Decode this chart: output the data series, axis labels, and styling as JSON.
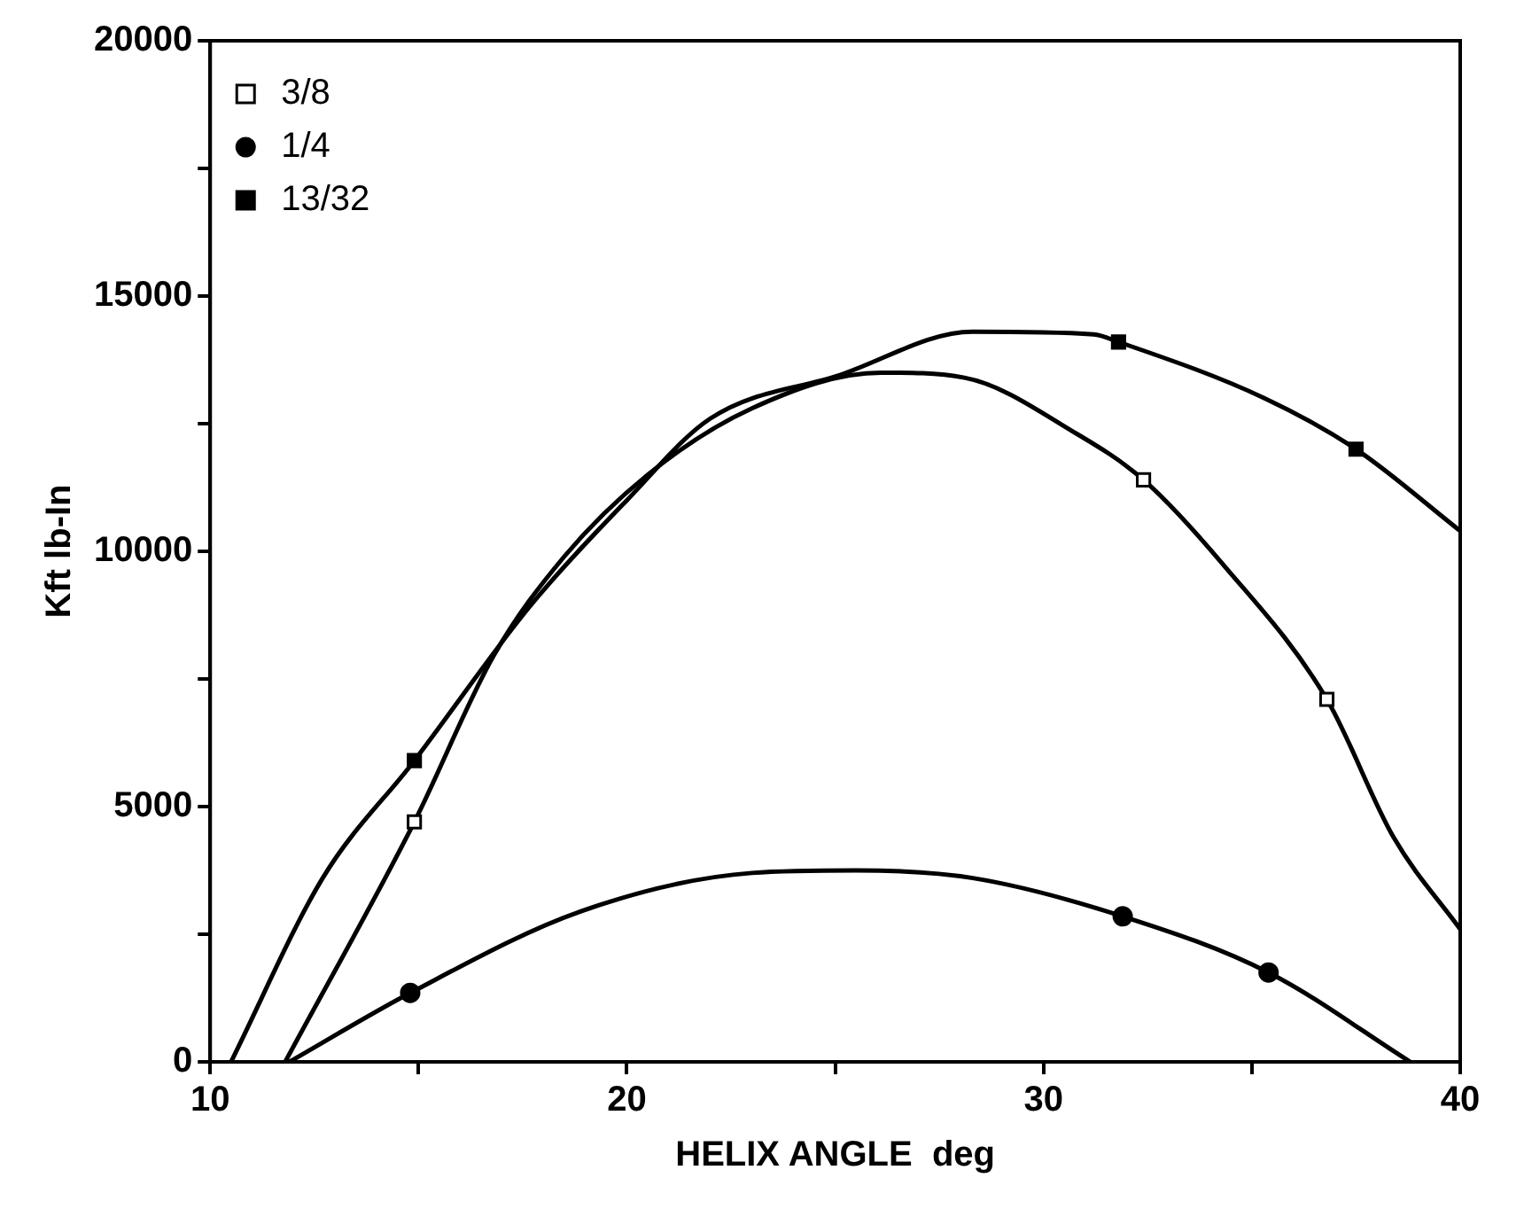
{
  "chart_data": {
    "type": "line",
    "xlabel": "HELIX ANGLE  deg",
    "ylabel": "Kft lb-In",
    "xlim": [
      10,
      40
    ],
    "xticks": [
      10,
      {
        "value": 15,
        "label": null
      },
      20,
      {
        "value": 25,
        "label": null
      },
      30,
      {
        "value": 35,
        "label": null
      },
      40
    ],
    "ylim": [
      0,
      20000
    ],
    "yticks": [
      0,
      {
        "value": 2500,
        "label": null
      },
      5000,
      {
        "value": 7500,
        "label": null
      },
      10000,
      {
        "value": 12500,
        "label": null
      },
      15000,
      {
        "value": 17500,
        "label": null
      },
      20000
    ],
    "grid": false,
    "legend": "top left",
    "series": [
      {
        "name": "3/8",
        "type": "scatter",
        "marker": "square",
        "color": "#ffffff",
        "x": [
          14.9,
          32.4,
          36.8
        ],
        "values": [
          4700,
          11400,
          7100
        ]
      },
      {
        "name": "1/4",
        "type": "scatter",
        "marker": "circle",
        "color": "#000000",
        "x": [
          14.8,
          31.9,
          35.4
        ],
        "values": [
          1350,
          2850,
          1750
        ]
      },
      {
        "name": "13/32",
        "type": "scatter",
        "marker": "square",
        "color": "#000000",
        "x": [
          14.9,
          31.8,
          37.5
        ],
        "values": [
          5900,
          14100,
          12000
        ]
      },
      {
        "marker": "none",
        "color": "#000000",
        "x": [
          11.8,
          14.9,
          16.8,
          18.5,
          20.5,
          23.0,
          26.1,
          28.1,
          30.8,
          32.4,
          34.3,
          36.8,
          38.4,
          40
        ],
        "values": [
          0,
          4700,
          7950,
          9900,
          11500,
          12800,
          13500,
          13400,
          12300,
          11400,
          9750,
          7100,
          4400,
          2600
        ]
      },
      {
        "marker": "none",
        "color": "#000000",
        "x": [
          11.9,
          14.8,
          18.9,
          23.0,
          25.5,
          28.3,
          31.9,
          35.4,
          38.8
        ],
        "values": [
          0,
          1350,
          2950,
          3700,
          3750,
          3600,
          2850,
          1750,
          0
        ]
      },
      {
        "marker": "none",
        "color": "#000000",
        "x": [
          10.5,
          12.7,
          14.9,
          17.7,
          20.0,
          22.0,
          25.1,
          28.3,
          31.2,
          31.8,
          35.3,
          37.5,
          40
        ],
        "values": [
          0,
          3600,
          5900,
          8950,
          11000,
          12600,
          13450,
          14300,
          14250,
          14100,
          13000,
          12000,
          10400
        ]
      }
    ]
  }
}
